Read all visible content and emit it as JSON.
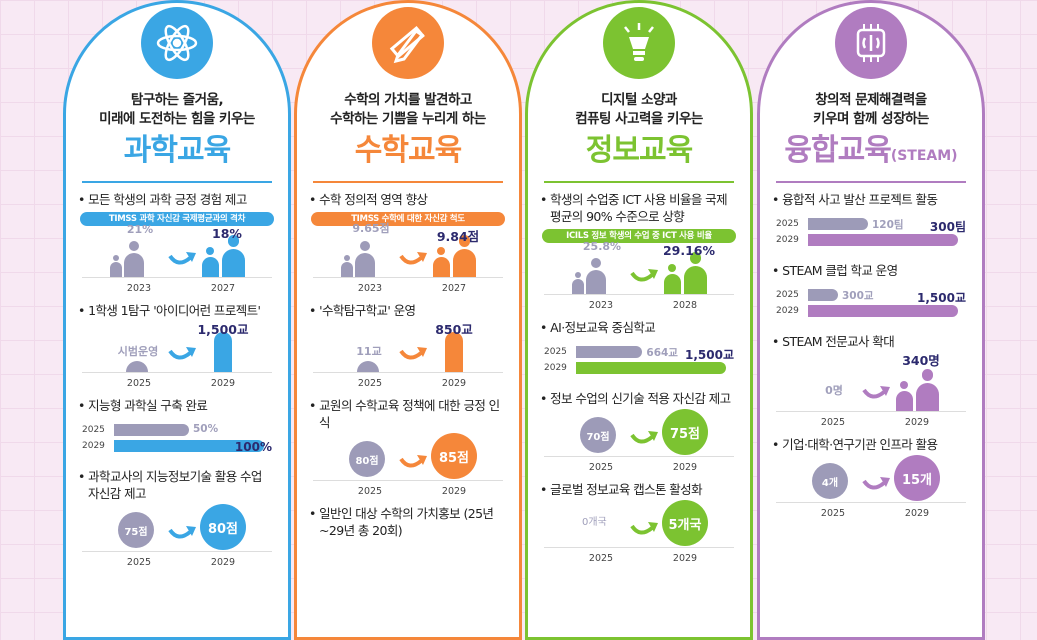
{
  "colors": {
    "gray": "#9d9bb8",
    "navy": "#2c2a6e"
  },
  "cards": [
    {
      "key": "science",
      "color": "#3aa6e4",
      "icon": "atom-icon",
      "sub": [
        "탐구하는 즐거움,",
        "미래에 도전하는 힘을 키우는"
      ],
      "title": "과학교육",
      "title_suffix": "",
      "items": [
        {
          "type": "people",
          "heading": "모든 학생의 과학 긍정 경험 제고",
          "pill": "TIMSS 과학 자신감 국제평균과의 격차",
          "from": "21%",
          "from_year": "2023",
          "to": "18%",
          "to_year": "2027"
        },
        {
          "type": "pillar",
          "heading": "1학생 1탐구 '아이디어런 프로젝트'",
          "from": "시범운영",
          "from_year": "2025",
          "to": "1,500교",
          "to_year": "2029"
        },
        {
          "type": "bars",
          "heading": "지능형 과학실 구축 완료",
          "from": "50%",
          "from_num": 50,
          "from_year": "2025",
          "to": "100%",
          "to_num": 100,
          "to_year": "2029"
        },
        {
          "type": "circles",
          "heading": "과학교사의 지능정보기술 활용 수업 자신감 제고",
          "from": "75점",
          "from_year": "2025",
          "to": "80점",
          "to_year": "2029"
        }
      ]
    },
    {
      "key": "math",
      "color": "#f5873a",
      "icon": "pencil-ruler-icon",
      "sub": [
        "수학의 가치를 발견하고",
        "수학하는 기쁨을 누리게 하는"
      ],
      "title": "수학교육",
      "title_suffix": "",
      "items": [
        {
          "type": "people",
          "heading": "수학 정의적 영역 향상",
          "pill": "TIMSS 수학에 대한 자신감 척도",
          "from": "9.65점",
          "from_year": "2023",
          "to": "9.84점",
          "to_year": "2027"
        },
        {
          "type": "pillar",
          "heading": "'수학탐구학교' 운영",
          "from": "11교",
          "from_year": "2025",
          "to": "850교",
          "to_year": "2029"
        },
        {
          "type": "circles",
          "heading": "교원의 수학교육 정책에 대한 긍정 인식",
          "from": "80점",
          "from_year": "2025",
          "to": "85점",
          "to_year": "2029"
        },
        {
          "type": "text",
          "heading": "일반인 대상 수학의 가치홍보 (25년~29년 총 20회)"
        }
      ]
    },
    {
      "key": "info",
      "color": "#7cc331",
      "icon": "lightbulb-icon",
      "sub": [
        "디지털 소양과",
        "컴퓨팅 사고력을 키우는"
      ],
      "title": "정보교육",
      "title_suffix": "",
      "items": [
        {
          "type": "people",
          "heading": "학생의 수업중 ICT 사용 비율을 국제 평균의 90% 수준으로 상향",
          "pill": "ICILS 정보 학생의 수업 중 ICT 사용 비율",
          "from": "25.8%",
          "from_year": "2023",
          "to": "29.16%",
          "to_year": "2028"
        },
        {
          "type": "bars",
          "heading": "AI·정보교육 중심학교",
          "from": "664교",
          "from_num": 664,
          "from_year": "2025",
          "to": "1,500교",
          "to_num": 1500,
          "to_year": "2029"
        },
        {
          "type": "circles",
          "heading": "정보 수업의 신기술 적용 자신감 제고",
          "from": "70점",
          "from_year": "2025",
          "to": "75점",
          "to_year": "2029"
        },
        {
          "type": "circles",
          "left_none": true,
          "heading": "글로벌 정보교육 캡스톤 활성화",
          "from": "0개국",
          "from_year": "2025",
          "to": "5개국",
          "to_year": "2029"
        }
      ]
    },
    {
      "key": "steam",
      "color": "#b07cc0",
      "icon": "brain-chip-icon",
      "sub": [
        "창의적 문제해결력을",
        "키우며 함께 성장하는"
      ],
      "title": "융합교육",
      "title_suffix": "(STEAM)",
      "items": [
        {
          "type": "bars",
          "heading": "융합적 사고 발산 프로젝트 활동",
          "from": "120팀",
          "from_num": 120,
          "from_year": "2025",
          "to": "300팀",
          "to_num": 300,
          "to_year": "2029"
        },
        {
          "type": "bars",
          "heading": "STEAM 클럽 학교 운영",
          "from": "300교",
          "from_num": 300,
          "from_year": "2025",
          "to": "1,500교",
          "to_num": 1500,
          "to_year": "2029"
        },
        {
          "type": "people",
          "left_none": true,
          "heading": "STEAM 전문교사 확대",
          "from": "0명",
          "from_year": "2025",
          "to": "340명",
          "to_year": "2029"
        },
        {
          "type": "circles",
          "heading": "기업·대학·연구기관 인프라 활용",
          "from": "4개",
          "from_year": "2025",
          "to": "15개",
          "to_year": "2029"
        }
      ]
    }
  ]
}
